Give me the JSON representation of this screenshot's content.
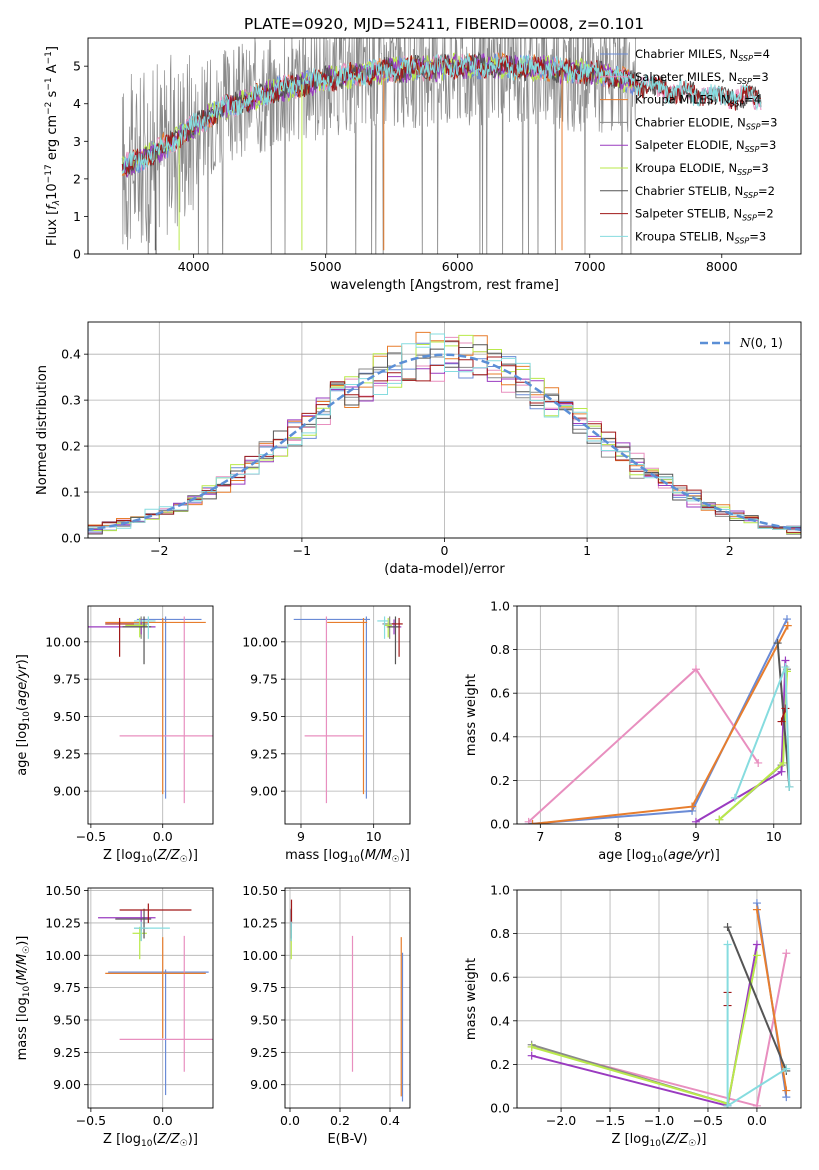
{
  "figure_title": "PLATE=0920, MJD=52411, FIBERID=0008, z=0.101",
  "colors": {
    "Chabrier MILES": "#6a8bd6",
    "Salpeter MILES": "#e88fbf",
    "Kroupa MILES": "#e77d2d",
    "Chabrier ELODIE": "#8a8a8a",
    "Salpeter ELODIE": "#9a3bc0",
    "Kroupa ELODIE": "#b9e94a",
    "Chabrier STELIB": "#555555",
    "Salpeter STELIB": "#a01818",
    "Kroupa STELIB": "#86dcdf",
    "gaussian": "#5b8fd6"
  },
  "chart_data": [
    {
      "type": "line",
      "title": "PLATE=0920, MJD=52411, FIBERID=0008, z=0.101",
      "xlabel": "wavelength [Angstrom, rest frame]",
      "ylabel": "Flux [f_λ 10^-17 erg cm^-2 s^-1 A^-1]",
      "xlim": [
        3200,
        8600
      ],
      "ylim": [
        0,
        5.75
      ],
      "xticks": [
        4000,
        5000,
        6000,
        7000,
        8000
      ],
      "yticks": [
        0,
        1,
        2,
        3,
        4,
        5
      ],
      "legend_position": "right",
      "legend": [
        {
          "name": "Chabrier MILES",
          "nssp": "4"
        },
        {
          "name": "Salpeter MILES",
          "nssp": "3"
        },
        {
          "name": "Kroupa MILES",
          "nssp": "4"
        },
        {
          "name": "Chabrier ELODIE",
          "nssp": "3"
        },
        {
          "name": "Salpeter ELODIE",
          "nssp": "3"
        },
        {
          "name": "Kroupa ELODIE",
          "nssp": "3"
        },
        {
          "name": "Chabrier STELIB",
          "nssp": "2"
        },
        {
          "name": "Salpeter STELIB",
          "nssp": "2"
        },
        {
          "name": "Kroupa STELIB",
          "nssp": "3"
        }
      ],
      "continuum": {
        "x": [
          3450,
          3600,
          3800,
          4000,
          4200,
          4400,
          4600,
          4800,
          5000,
          5200,
          5500,
          5800,
          6000,
          6300,
          6600,
          6900,
          7100,
          7300,
          7600,
          7900,
          8300
        ],
        "y": [
          2.3,
          2.5,
          2.9,
          3.4,
          3.85,
          4.1,
          4.35,
          4.5,
          4.65,
          4.75,
          4.9,
          4.95,
          5.0,
          5.0,
          4.95,
          4.85,
          4.8,
          4.6,
          4.35,
          4.2,
          4.15
        ]
      }
    },
    {
      "type": "histogram",
      "xlabel": "(data-model)/error",
      "ylabel": "Normed distribution",
      "xlim": [
        -2.5,
        2.5
      ],
      "ylim": [
        0,
        0.47
      ],
      "xticks": [
        -2,
        -1,
        0,
        1,
        2
      ],
      "yticks": [
        0.0,
        0.1,
        0.2,
        0.3,
        0.4
      ],
      "legend_position": "top-right",
      "legend_label": "N(0,1)",
      "bin_width": 0.1,
      "gaussian": {
        "mean": 0,
        "sigma": 1
      }
    },
    {
      "type": "errorbar",
      "xlabel": "Z [log10(Z/Z☉)]",
      "ylabel": "age  [log10(age/yr)]",
      "xlim": [
        -0.52,
        0.35
      ],
      "ylim": [
        8.78,
        10.24
      ],
      "xticks": [
        -0.5,
        0.0
      ],
      "yticks": [
        9.0,
        9.25,
        9.5,
        9.75,
        10.0
      ],
      "points": [
        {
          "series": "Chabrier MILES",
          "x": 0.02,
          "y": 10.15,
          "xerr": [
            0.2,
            0.25
          ],
          "yerr": [
            1.2,
            0.02
          ]
        },
        {
          "series": "Salpeter MILES",
          "x": 0.15,
          "y": 9.37,
          "xerr": [
            0.45,
            0.3
          ],
          "yerr": [
            0.45,
            0.8
          ]
        },
        {
          "series": "Kroupa MILES",
          "x": 0.0,
          "y": 10.13,
          "xerr": [
            0.4,
            0.3
          ],
          "yerr": [
            1.15,
            0.03
          ]
        },
        {
          "series": "Chabrier ELODIE",
          "x": -0.15,
          "y": 10.12,
          "xerr": [
            0.05,
            0.05
          ],
          "yerr": [
            0.1,
            0.05
          ]
        },
        {
          "series": "Salpeter ELODIE",
          "x": -0.15,
          "y": 10.1,
          "xerr": [
            0.4,
            0.1
          ],
          "yerr": [
            0.05,
            0.05
          ]
        },
        {
          "series": "Kroupa ELODIE",
          "x": -0.16,
          "y": 10.11,
          "xerr": [
            0.1,
            0.05
          ],
          "yerr": [
            0.08,
            0.05
          ]
        },
        {
          "series": "Chabrier STELIB",
          "x": -0.13,
          "y": 10.1,
          "xerr": [
            0.15,
            0.05
          ],
          "yerr": [
            0.25,
            0.07
          ]
        },
        {
          "series": "Salpeter STELIB",
          "x": -0.3,
          "y": 10.12,
          "xerr": [
            0.1,
            0.1
          ],
          "yerr": [
            0.22,
            0.04
          ]
        },
        {
          "series": "Kroupa STELIB",
          "x": -0.1,
          "y": 10.14,
          "xerr": [
            0.1,
            0.05
          ],
          "yerr": [
            0.12,
            0.03
          ]
        }
      ]
    },
    {
      "type": "errorbar",
      "xlabel": "mass [log10(M/M☉)]",
      "xlim": [
        8.78,
        10.5
      ],
      "ylim": [
        8.78,
        10.24
      ],
      "xticks": [
        9,
        10
      ],
      "yticks": [
        9.0,
        9.25,
        9.5,
        9.75,
        10.0
      ],
      "points": [
        {
          "series": "Chabrier MILES",
          "x": 9.9,
          "y": 10.15,
          "xerr": [
            1.0,
            0.05
          ],
          "yerr": [
            1.2,
            0.02
          ]
        },
        {
          "series": "Salpeter MILES",
          "x": 9.35,
          "y": 9.37,
          "xerr": [
            0.3,
            0.5
          ],
          "yerr": [
            0.45,
            0.8
          ]
        },
        {
          "series": "Kroupa MILES",
          "x": 9.86,
          "y": 10.13,
          "xerr": [
            0.5,
            0.05
          ],
          "yerr": [
            1.15,
            0.03
          ]
        },
        {
          "series": "Chabrier ELODIE",
          "x": 10.22,
          "y": 10.12,
          "xerr": [
            0.1,
            0.05
          ],
          "yerr": [
            0.1,
            0.05
          ]
        },
        {
          "series": "Salpeter ELODIE",
          "x": 10.28,
          "y": 10.1,
          "xerr": [
            0.1,
            0.1
          ],
          "yerr": [
            0.05,
            0.05
          ]
        },
        {
          "series": "Kroupa ELODIE",
          "x": 10.2,
          "y": 10.11,
          "xerr": [
            0.05,
            0.05
          ],
          "yerr": [
            0.08,
            0.05
          ]
        },
        {
          "series": "Chabrier STELIB",
          "x": 10.3,
          "y": 10.1,
          "xerr": [
            0.1,
            0.05
          ],
          "yerr": [
            0.25,
            0.07
          ]
        },
        {
          "series": "Salpeter STELIB",
          "x": 10.35,
          "y": 10.12,
          "xerr": [
            0.1,
            0.05
          ],
          "yerr": [
            0.22,
            0.04
          ]
        },
        {
          "series": "Kroupa STELIB",
          "x": 10.15,
          "y": 10.14,
          "xerr": [
            0.1,
            0.05
          ],
          "yerr": [
            0.12,
            0.03
          ]
        }
      ]
    },
    {
      "type": "line",
      "xlabel": "age  [log10(age/yr)]",
      "ylabel": "mass weight",
      "xlim": [
        6.7,
        10.35
      ],
      "ylim": [
        0,
        1
      ],
      "xticks": [
        7,
        8,
        9,
        10
      ],
      "yticks": [
        0.0,
        0.2,
        0.4,
        0.6,
        0.8,
        1.0
      ],
      "series": [
        {
          "name": "Chabrier MILES",
          "x": [
            6.85,
            8.95,
            10.17
          ],
          "y": [
            0.0,
            0.06,
            0.94
          ]
        },
        {
          "name": "Salpeter MILES",
          "x": [
            6.85,
            9.0,
            9.8
          ],
          "y": [
            0.01,
            0.71,
            0.28
          ]
        },
        {
          "name": "Kroupa MILES",
          "x": [
            6.9,
            8.95,
            10.18
          ],
          "y": [
            0.0,
            0.08,
            0.91
          ]
        },
        {
          "name": "Chabrier ELODIE",
          "x": [
            9.3,
            10.1,
            10.17
          ],
          "y": [
            0.02,
            0.27,
            0.71
          ]
        },
        {
          "name": "Salpeter ELODIE",
          "x": [
            9.0,
            10.1,
            10.15
          ],
          "y": [
            0.01,
            0.24,
            0.75
          ]
        },
        {
          "name": "Kroupa ELODIE",
          "x": [
            9.3,
            10.12,
            10.17
          ],
          "y": [
            0.02,
            0.28,
            0.7
          ]
        },
        {
          "name": "Chabrier STELIB",
          "x": [
            10.05,
            10.2
          ],
          "y": [
            0.83,
            0.17
          ]
        },
        {
          "name": "Salpeter STELIB",
          "x": [
            10.1,
            10.15
          ],
          "y": [
            0.47,
            0.53
          ]
        },
        {
          "name": "Kroupa STELIB",
          "x": [
            9.5,
            10.15,
            10.2
          ],
          "y": [
            0.12,
            0.72,
            0.17
          ]
        }
      ]
    },
    {
      "type": "errorbar",
      "xlabel": "Z [log10(Z/Z☉)]",
      "ylabel": "mass [log10(M/M☉)]",
      "xlim": [
        -0.52,
        0.35
      ],
      "ylim": [
        8.82,
        10.52
      ],
      "xticks": [
        -0.5,
        0.0
      ],
      "yticks": [
        9.0,
        9.25,
        9.5,
        9.75,
        10.0,
        10.25,
        10.5
      ],
      "points": [
        {
          "series": "Chabrier MILES",
          "x": 0.02,
          "y": 9.87,
          "xerr": [
            0.4,
            0.3
          ],
          "yerr": [
            0.95,
            0.02
          ]
        },
        {
          "series": "Salpeter MILES",
          "x": 0.15,
          "y": 9.35,
          "xerr": [
            0.45,
            0.3
          ],
          "yerr": [
            0.25,
            0.8
          ]
        },
        {
          "series": "Kroupa MILES",
          "x": 0.0,
          "y": 9.86,
          "xerr": [
            0.4,
            0.3
          ],
          "yerr": [
            0.5,
            0.28
          ]
        },
        {
          "series": "Chabrier ELODIE",
          "x": -0.15,
          "y": 10.21,
          "xerr": [
            0.05,
            0.05
          ],
          "yerr": [
            0.1,
            0.05
          ]
        },
        {
          "series": "Salpeter ELODIE",
          "x": -0.15,
          "y": 10.29,
          "xerr": [
            0.3,
            0.1
          ],
          "yerr": [
            0.1,
            0.06
          ]
        },
        {
          "series": "Kroupa ELODIE",
          "x": -0.16,
          "y": 10.17,
          "xerr": [
            0.05,
            0.05
          ],
          "yerr": [
            0.2,
            0.05
          ]
        },
        {
          "series": "Chabrier STELIB",
          "x": -0.13,
          "y": 10.28,
          "xerr": [
            0.2,
            0.05
          ],
          "yerr": [
            0.15,
            0.08
          ]
        },
        {
          "series": "Salpeter STELIB",
          "x": -0.1,
          "y": 10.35,
          "xerr": [
            0.2,
            0.3
          ],
          "yerr": [
            0.1,
            0.05
          ]
        },
        {
          "series": "Kroupa STELIB",
          "x": -0.15,
          "y": 10.21,
          "xerr": [
            0.05,
            0.2
          ],
          "yerr": [
            0.1,
            0.05
          ]
        }
      ]
    },
    {
      "type": "errorbar",
      "xlabel": "E(B-V)",
      "xlim": [
        -0.02,
        0.48
      ],
      "ylim": [
        8.82,
        10.52
      ],
      "xticks": [
        0.0,
        0.2,
        0.4
      ],
      "yticks": [
        9.0,
        9.25,
        9.5,
        9.75,
        10.0,
        10.25,
        10.5
      ],
      "points": [
        {
          "series": "Chabrier MILES",
          "x": 0.45,
          "y": 9.87,
          "xerr": [
            0,
            0
          ],
          "yerr": [
            1.0,
            0.15
          ]
        },
        {
          "series": "Salpeter MILES",
          "x": 0.25,
          "y": 9.5,
          "xerr": [
            0,
            0
          ],
          "yerr": [
            0.4,
            0.65
          ]
        },
        {
          "series": "Kroupa MILES",
          "x": 0.445,
          "y": 9.86,
          "xerr": [
            0,
            0
          ],
          "yerr": [
            0.95,
            0.28
          ]
        },
        {
          "series": "Chabrier ELODIE",
          "x": 0.005,
          "y": 10.21,
          "xerr": [
            0,
            0
          ],
          "yerr": [
            0.1,
            0.05
          ]
        },
        {
          "series": "Salpeter ELODIE",
          "x": 0.005,
          "y": 10.29,
          "xerr": [
            0,
            0
          ],
          "yerr": [
            0.1,
            0.06
          ]
        },
        {
          "series": "Kroupa ELODIE",
          "x": 0.005,
          "y": 10.17,
          "xerr": [
            0,
            0
          ],
          "yerr": [
            0.2,
            0.05
          ]
        },
        {
          "series": "Chabrier STELIB",
          "x": 0.005,
          "y": 10.28,
          "xerr": [
            0,
            0
          ],
          "yerr": [
            0.15,
            0.08
          ]
        },
        {
          "series": "Salpeter STELIB",
          "x": 0.006,
          "y": 10.35,
          "xerr": [
            0,
            0
          ],
          "yerr": [
            0.1,
            0.08
          ]
        },
        {
          "series": "Kroupa STELIB",
          "x": 0.005,
          "y": 10.21,
          "xerr": [
            0,
            0
          ],
          "yerr": [
            0.1,
            0.05
          ]
        }
      ]
    },
    {
      "type": "line",
      "xlabel": "Z [log10(Z/Z☉)]",
      "ylabel": "mass weight",
      "xlim": [
        -2.45,
        0.45
      ],
      "ylim": [
        0,
        1
      ],
      "xticks": [
        -2.0,
        -1.5,
        -1.0,
        -0.5,
        0.0
      ],
      "yticks": [
        0.0,
        0.2,
        0.4,
        0.6,
        0.8,
        1.0
      ],
      "series": [
        {
          "name": "Chabrier MILES",
          "x": [
            0.0,
            0.3
          ],
          "y": [
            0.94,
            0.05
          ]
        },
        {
          "name": "Salpeter MILES",
          "x": [
            -2.3,
            0.0,
            0.3
          ],
          "y": [
            0.28,
            0.01,
            0.71
          ]
        },
        {
          "name": "Kroupa MILES",
          "x": [
            0.0,
            0.3
          ],
          "y": [
            0.91,
            0.08
          ]
        },
        {
          "name": "Chabrier ELODIE",
          "x": [
            -2.3,
            -0.3
          ],
          "y": [
            0.29,
            0.02
          ]
        },
        {
          "name": "Salpeter ELODIE",
          "x": [
            -2.3,
            -0.3,
            0.0
          ],
          "y": [
            0.24,
            0.01,
            0.75
          ]
        },
        {
          "name": "Kroupa ELODIE",
          "x": [
            -2.3,
            -0.3,
            0.0
          ],
          "y": [
            0.28,
            0.02,
            0.7
          ]
        },
        {
          "name": "Chabrier STELIB",
          "x": [
            -0.3,
            0.3
          ],
          "y": [
            0.83,
            0.17
          ]
        },
        {
          "name": "Salpeter STELIB",
          "x": [
            -0.3,
            -0.3
          ],
          "y": [
            0.53,
            0.47
          ]
        },
        {
          "name": "Kroupa STELIB",
          "x": [
            -0.3,
            -0.3,
            0.3
          ],
          "y": [
            0.75,
            0.01,
            0.18
          ]
        }
      ]
    }
  ]
}
